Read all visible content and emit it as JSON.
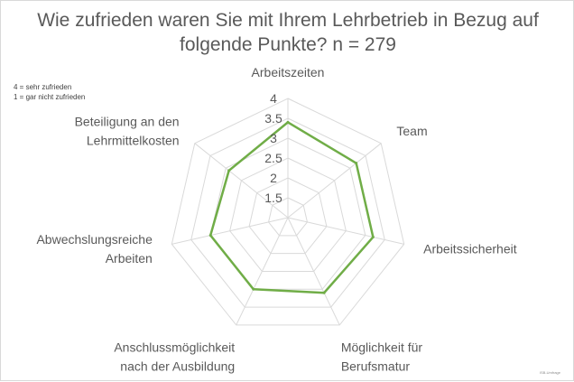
{
  "chart_data": {
    "type": "radar",
    "title_lines": [
      "Wie zufrieden waren Sie mit Ihrem Lehrbetrieb in Bezug auf",
      "folgende Punkte? n = 279"
    ],
    "note_lines": [
      "4 = sehr zufrieden",
      "1 = gar nicht zufrieden"
    ],
    "categories": [
      {
        "lines": [
          "Arbeitszeiten"
        ]
      },
      {
        "lines": [
          "Team"
        ]
      },
      {
        "lines": [
          "Arbeitssicherheit"
        ]
      },
      {
        "lines": [
          "Möglichkeit für",
          "Berufsmatur"
        ]
      },
      {
        "lines": [
          "Anschlussmöglichkeit",
          "nach der Ausbildung"
        ]
      },
      {
        "lines": [
          "Abwechslungsreiche",
          "Arbeiten"
        ]
      },
      {
        "lines": [
          "Beteiligung an den",
          "Lehrmittelkosten"
        ]
      }
    ],
    "series": [
      {
        "values": [
          3.4,
          3.2,
          3.2,
          3.1,
          3.0,
          3.0,
          2.9
        ],
        "color": "#70ad47"
      }
    ],
    "rlim": [
      1,
      4
    ],
    "ticks": [
      1.5,
      2,
      2.5,
      3,
      3.5,
      4
    ],
    "grid": true,
    "grid_color": "#d9d9d9"
  },
  "footnote": "ISB-Umfrage"
}
